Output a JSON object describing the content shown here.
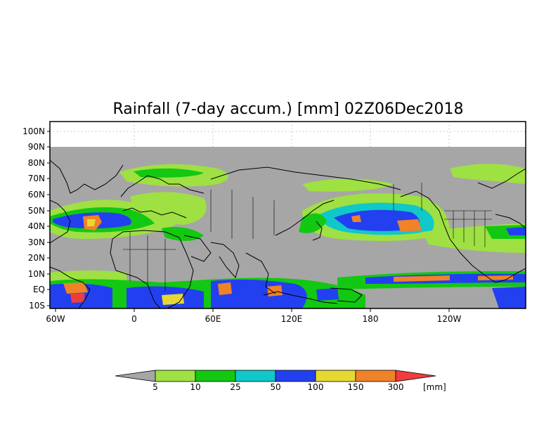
{
  "title": "Rainfall (7-day accum.) [mm] 02Z06Dec2018",
  "lat_labels": [
    "100N",
    "90N",
    "80N",
    "70N",
    "60N",
    "50N",
    "40N",
    "30N",
    "20N",
    "10N",
    "EQ",
    "10S"
  ],
  "lon_labels": [
    "60W",
    "0",
    "60E",
    "120E",
    "180",
    "120W"
  ],
  "colorbar": {
    "thresholds": [
      "5",
      "10",
      "25",
      "50",
      "100",
      "150",
      "300"
    ],
    "unit": "[mm]",
    "colors": [
      "#a6a6a6",
      "#9fe043",
      "#12c812",
      "#10c8c8",
      "#2340f0",
      "#e6d832",
      "#f08228",
      "#f03c3c"
    ]
  },
  "colors": {
    "land_and_no_rain": "#a6a6a6",
    "coastline": "#000000"
  }
}
